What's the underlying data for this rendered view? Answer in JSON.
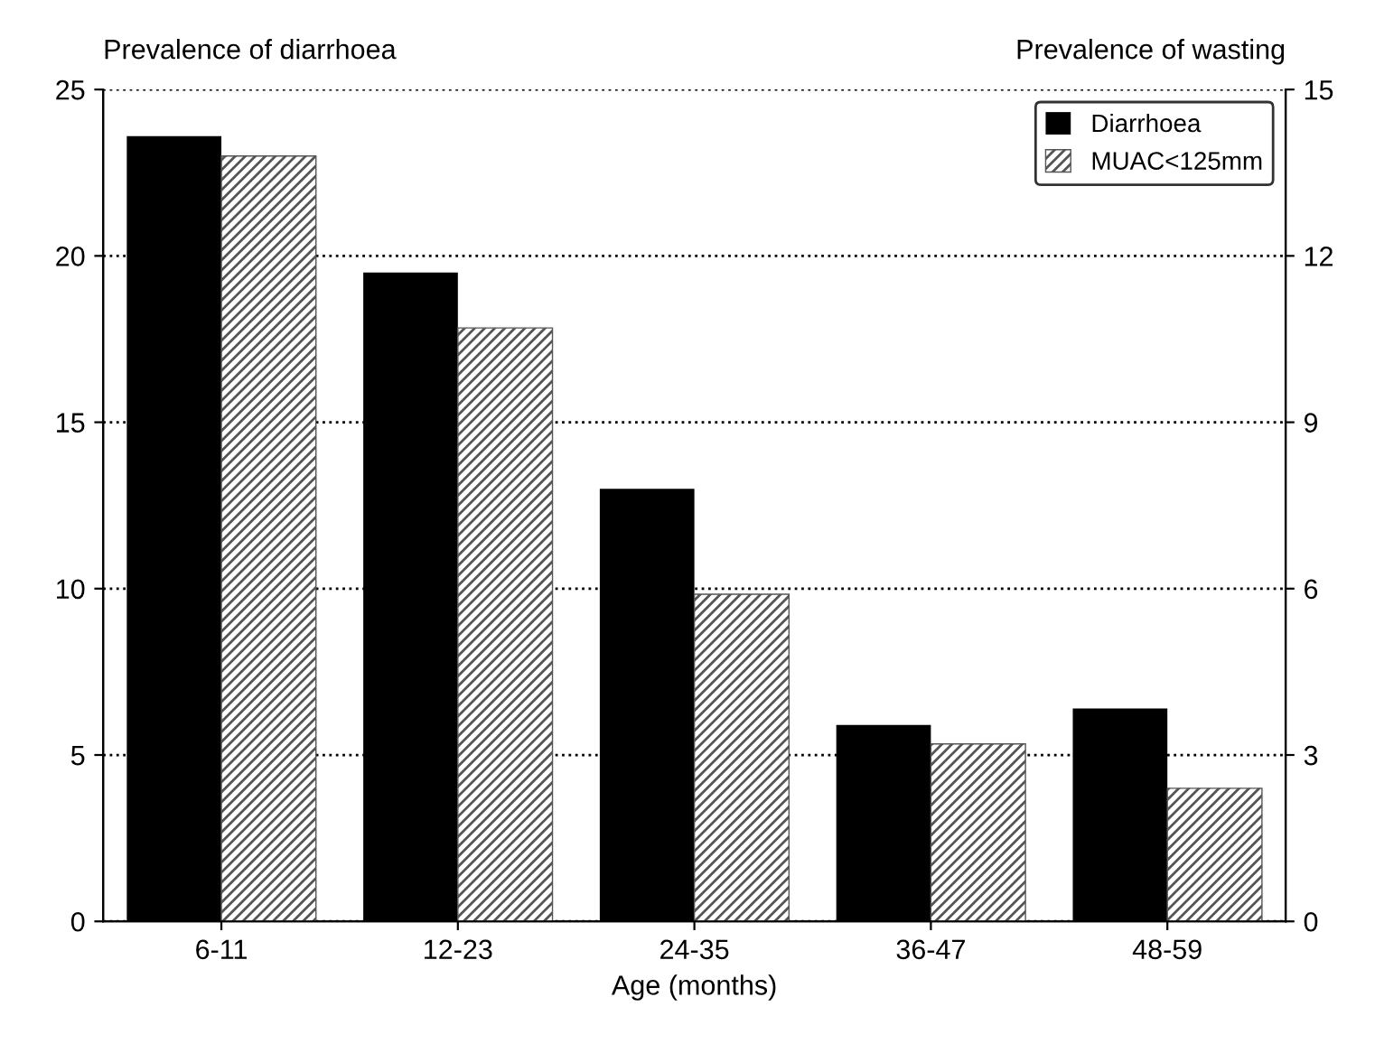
{
  "chart_data": {
    "type": "bar",
    "xlabel": "Age (months)",
    "ylabel": "Prevalence of diarrhoea",
    "y2label": "Prevalence of wasting",
    "categories": [
      "6-11",
      "12-23",
      "24-35",
      "36-47",
      "48-59"
    ],
    "series": [
      {
        "name": "Diarrhoea",
        "color": "#000000",
        "values": [
          23.6,
          19.5,
          13.0,
          5.9,
          6.4
        ]
      },
      {
        "name": "MUAC<125mm",
        "color": "#555555",
        "values": [
          13.8,
          10.7,
          5.9,
          3.2,
          2.4
        ],
        "axis": "y2"
      }
    ],
    "ylim": [
      0,
      25
    ],
    "yticks": [
      0,
      5,
      10,
      15,
      20,
      25
    ],
    "y2lim": [
      0,
      15
    ],
    "y2ticks": [
      0,
      3,
      6,
      9,
      12,
      15
    ],
    "grid": "y",
    "legend": "top right"
  }
}
